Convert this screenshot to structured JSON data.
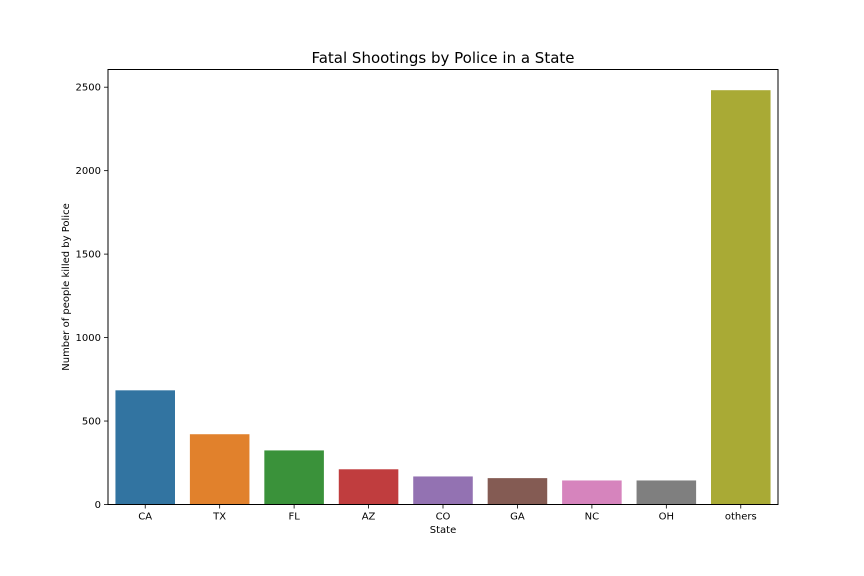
{
  "chart_data": {
    "type": "bar",
    "title": "Fatal Shootings by Police in a State",
    "xlabel": "State",
    "ylabel": "Number of people killed by Police",
    "categories": [
      "CA",
      "TX",
      "FL",
      "AZ",
      "CO",
      "GA",
      "NC",
      "OH",
      "others"
    ],
    "values": [
      684,
      421,
      324,
      211,
      168,
      158,
      144,
      144,
      2482
    ],
    "colors": [
      "#3274a1",
      "#e1812c",
      "#3a923a",
      "#c03d3e",
      "#9372b2",
      "#845b53",
      "#d684bd",
      "#7f7f7f",
      "#a9aa35"
    ],
    "yticks": [
      0,
      500,
      1000,
      1500,
      2000,
      2500
    ],
    "ylim": [
      0,
      2606
    ],
    "grid": false,
    "legend": "none"
  }
}
